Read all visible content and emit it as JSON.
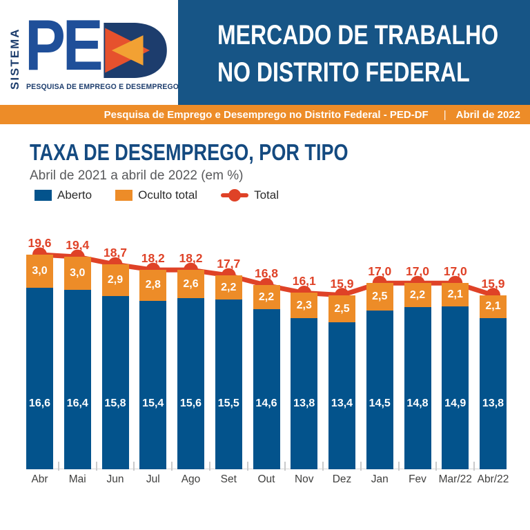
{
  "logo": {
    "sistema": "SISTEMA",
    "ped_pe": "PE",
    "tagline": "PESQUISA DE EMPREGO E DESEMPREGO"
  },
  "header": {
    "title_line1": "MERCADO DE TRABALHO",
    "title_line2": "NO DISTRITO FEDERAL"
  },
  "banner": {
    "text": "Pesquisa de Emprego e Desemprego no Distrito Federal - PED-DF",
    "separator": "|",
    "date": "Abril de 2022"
  },
  "section": {
    "title": "TAXA DE DESEMPREGO, POR TIPO",
    "subtitle": "Abril de 2021 a abril de 2022 (em %)"
  },
  "legend": {
    "items": [
      {
        "label": "Aberto",
        "color": "#03538c",
        "marker": "square"
      },
      {
        "label": "Oculto total",
        "color": "#ed8c28",
        "marker": "square"
      },
      {
        "label": "Total",
        "color": "#df4227",
        "marker": "line-dot"
      }
    ]
  },
  "colors": {
    "header_blue": "#175586",
    "banner_orange": "#ed8c28",
    "bar_blue": "#03538c",
    "bar_orange": "#ed8c28",
    "line_red": "#df4227",
    "title_blue": "#144a80",
    "subtitle_gray": "#58595b",
    "logo_navy": "#1d3d6d",
    "logo_pe_blue": "#1f4f99",
    "logo_triangle_red": "#e6512d",
    "logo_triangle_amber": "#f2a133"
  },
  "chart_data": {
    "type": "bar",
    "subtype": "stacked-bars-with-total-line",
    "title": "TAXA DE DESEMPREGO, POR TIPO",
    "subtitle": "Abril de 2021 a abril de 2022 (em %)",
    "categories": [
      "Abr",
      "Mai",
      "Jun",
      "Jul",
      "Ago",
      "Set",
      "Out",
      "Nov",
      "Dez",
      "Jan",
      "Fev",
      "Mar/22",
      "Abr/22"
    ],
    "series": [
      {
        "name": "Aberto",
        "type": "bar",
        "color": "#03538c",
        "values": [
          16.6,
          16.4,
          15.8,
          15.4,
          15.6,
          15.5,
          14.6,
          13.8,
          13.4,
          14.5,
          14.8,
          14.9,
          13.8
        ]
      },
      {
        "name": "Oculto total",
        "type": "bar",
        "color": "#ed8c28",
        "values": [
          3.0,
          3.0,
          2.9,
          2.8,
          2.6,
          2.2,
          2.2,
          2.3,
          2.5,
          2.5,
          2.2,
          2.1,
          2.1
        ]
      },
      {
        "name": "Total",
        "type": "line",
        "color": "#df4227",
        "values": [
          19.6,
          19.4,
          18.7,
          18.2,
          18.2,
          17.7,
          16.8,
          16.1,
          15.9,
          17.0,
          17.0,
          17.0,
          15.9
        ]
      }
    ],
    "value_format": "comma-decimal-1",
    "unit": "%",
    "ylim": [
      0,
      22
    ],
    "grid": false,
    "legend_position": "top-left"
  }
}
